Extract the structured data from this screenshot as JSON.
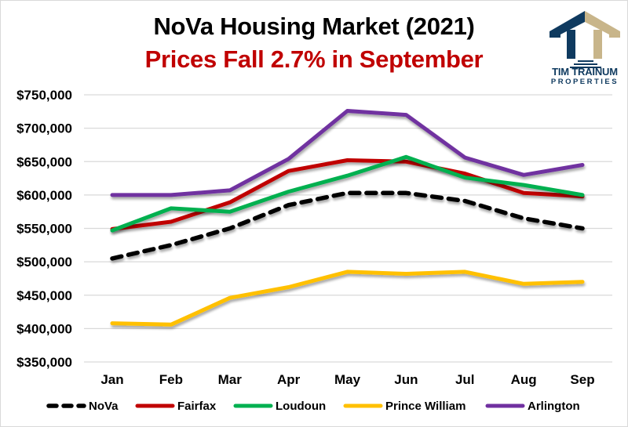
{
  "chart_data": {
    "type": "line",
    "title": "NoVa Housing Market (2021)",
    "subtitle": "Prices Fall 2.7% in September",
    "xlabel": "",
    "ylabel": "",
    "categories": [
      "Jan",
      "Feb",
      "Mar",
      "Apr",
      "May",
      "Jun",
      "Jul",
      "Aug",
      "Sep"
    ],
    "ylim": [
      350000,
      750000
    ],
    "yticks": [
      350000,
      400000,
      450000,
      500000,
      550000,
      600000,
      650000,
      700000,
      750000
    ],
    "ytick_labels": [
      "$350,000",
      "$400,000",
      "$450,000",
      "$500,000",
      "$550,000",
      "$600,000",
      "$650,000",
      "$700,000",
      "$750,000"
    ],
    "grid": true,
    "legend_position": "bottom",
    "series": [
      {
        "name": "NoVa",
        "color": "#000000",
        "dashed": true,
        "values": [
          505000,
          525000,
          550000,
          585000,
          603000,
          603000,
          591000,
          565000,
          550000
        ]
      },
      {
        "name": "Fairfax",
        "color": "#c00000",
        "dashed": false,
        "values": [
          549000,
          560000,
          589000,
          636000,
          652000,
          650000,
          632000,
          603000,
          598000
        ]
      },
      {
        "name": "Loudoun",
        "color": "#00b050",
        "dashed": false,
        "values": [
          547000,
          580000,
          575000,
          605000,
          629000,
          657000,
          626000,
          615000,
          600000
        ]
      },
      {
        "name": "Prince William",
        "color": "#ffc000",
        "dashed": false,
        "values": [
          408000,
          406000,
          446000,
          462000,
          485000,
          482000,
          485000,
          467000,
          470000
        ]
      },
      {
        "name": "Arlington",
        "color": "#7030a0",
        "dashed": false,
        "values": [
          600000,
          600000,
          607000,
          654000,
          726000,
          720000,
          656000,
          630000,
          645000
        ]
      }
    ]
  },
  "logo": {
    "line1": "TIM TRAINUM",
    "line2": "PROPERTIES",
    "colors": {
      "navy": "#0f3a5f",
      "tan": "#c8b58a"
    }
  }
}
